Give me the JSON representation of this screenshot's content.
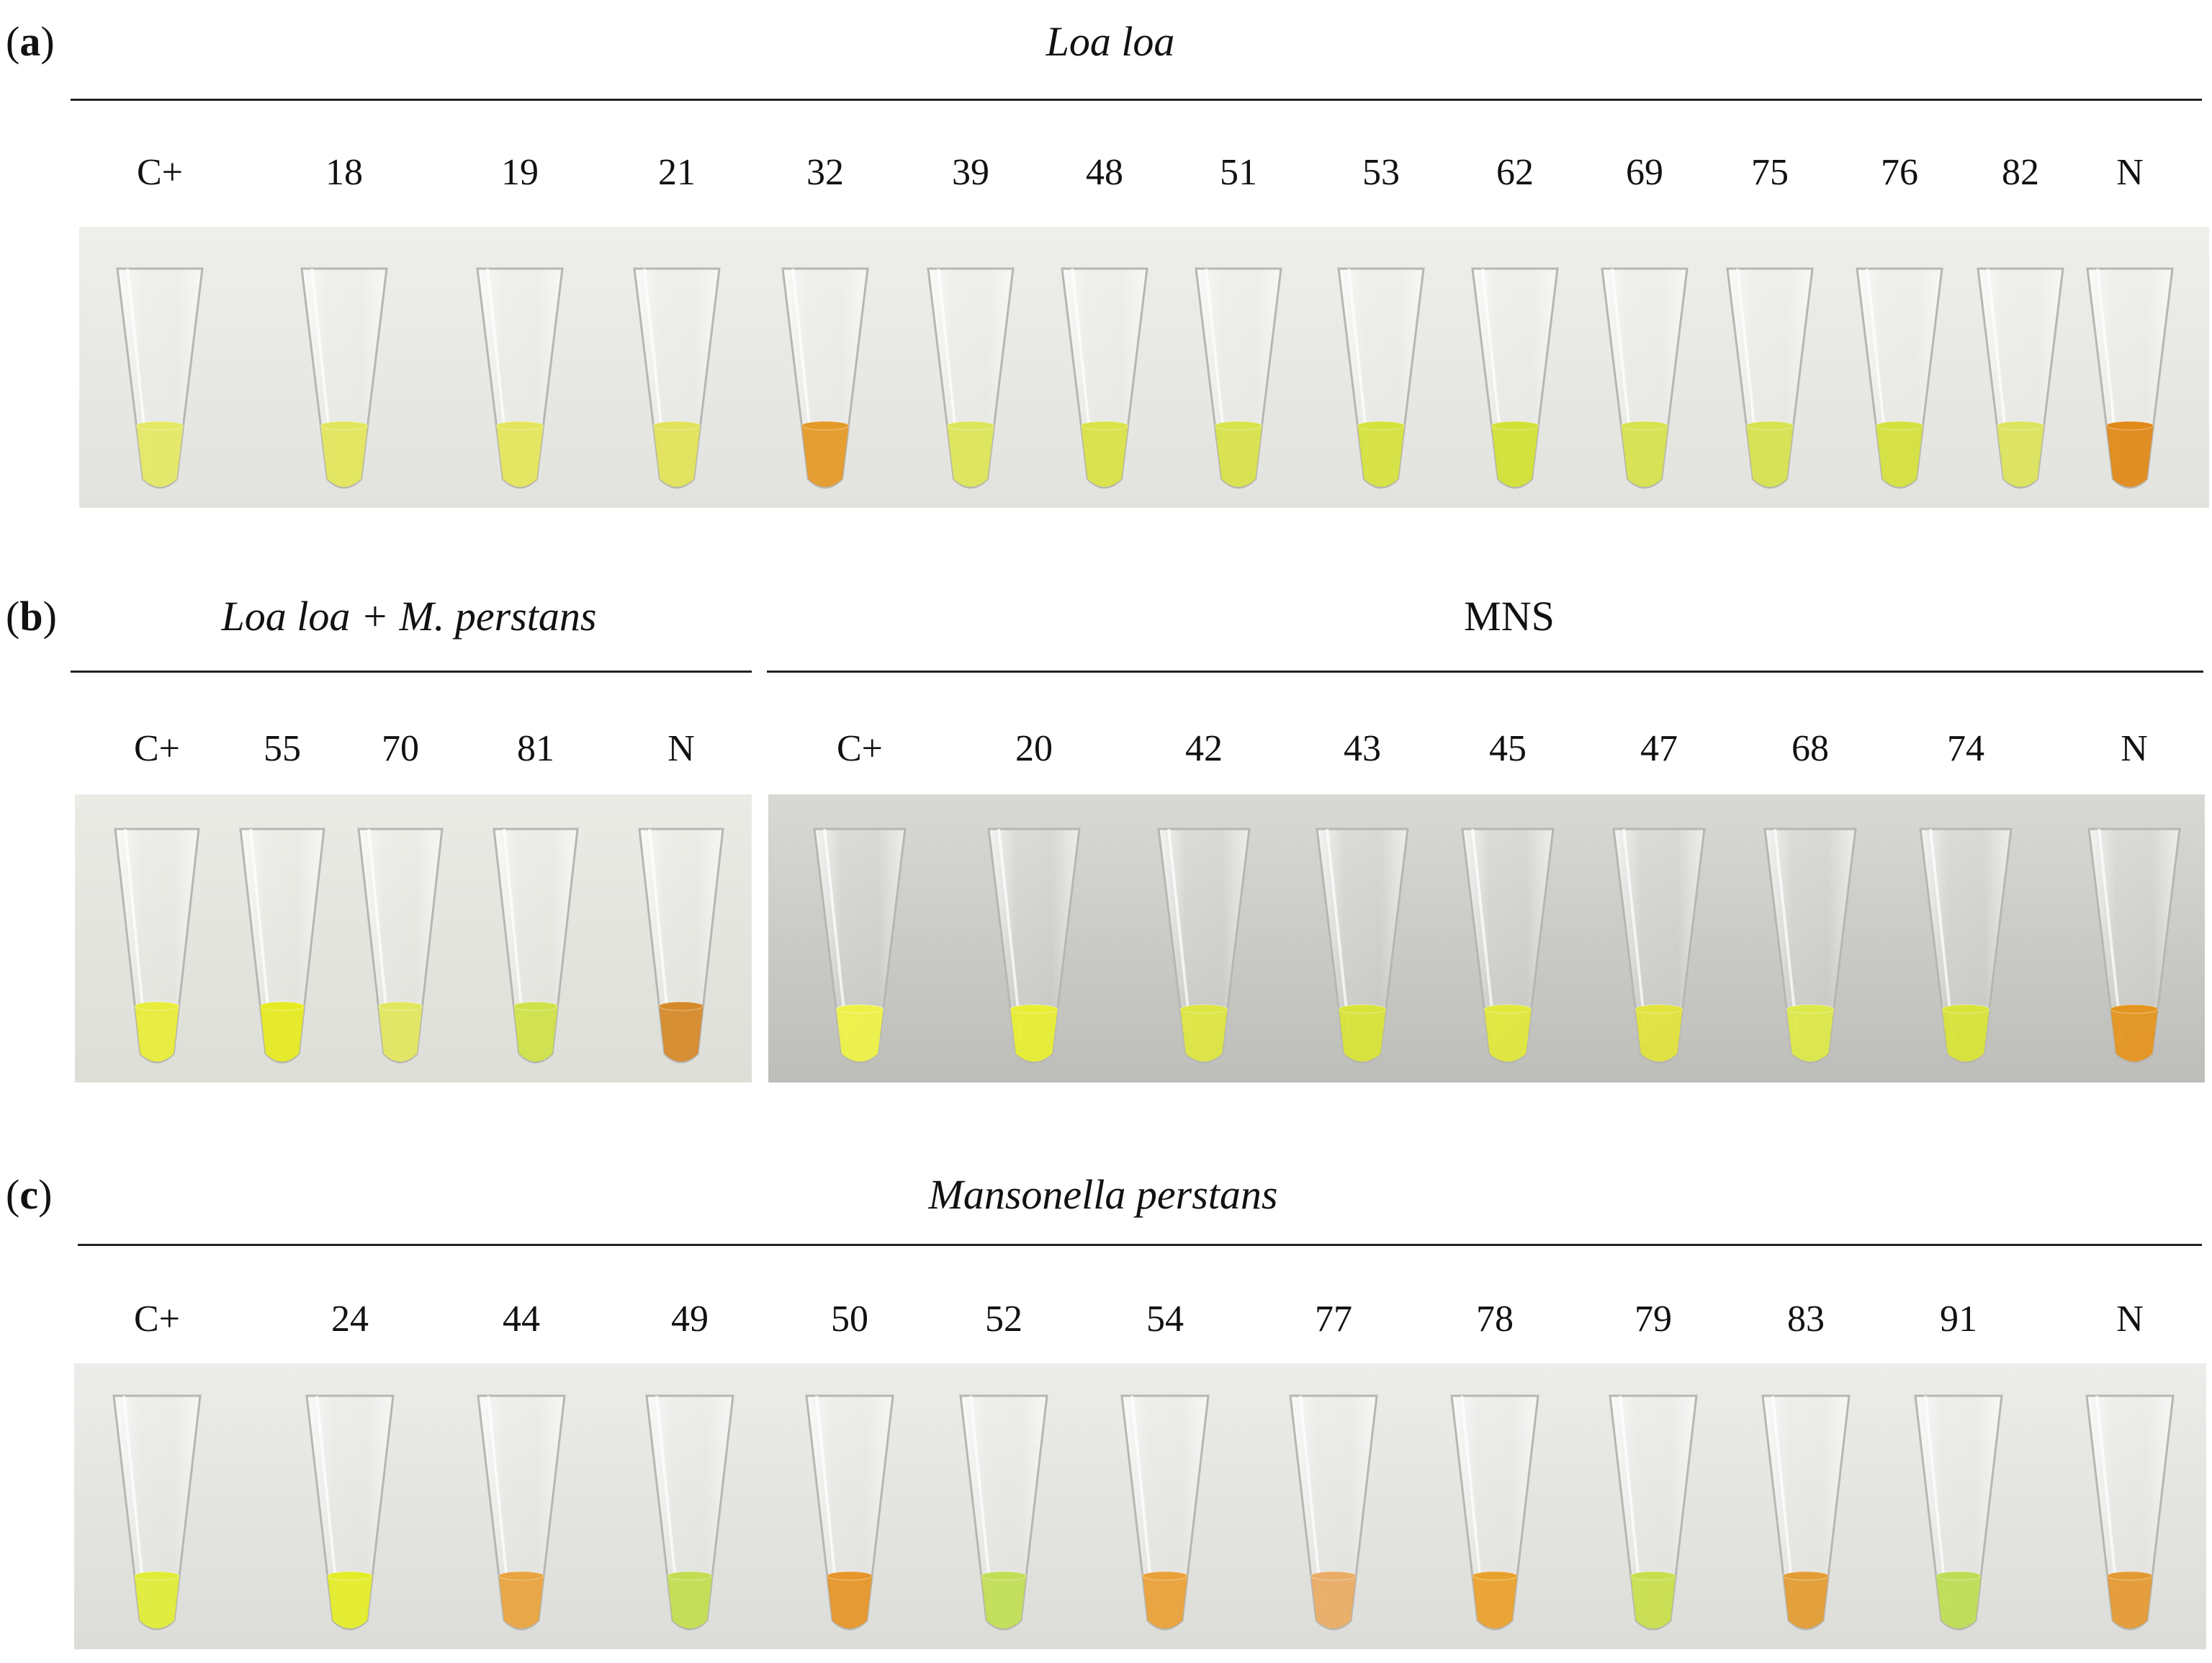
{
  "panels": {
    "a": {
      "letter": "a",
      "title": "Loa loa",
      "labels": [
        "C+",
        "18",
        "19",
        "21",
        "32",
        "39",
        "48",
        "51",
        "53",
        "62",
        "69",
        "75",
        "76",
        "82",
        "N"
      ],
      "tube_colors": [
        "#e4e865",
        "#e2e65c",
        "#e4e55c",
        "#e0e35a",
        "#e49a28",
        "#dce55a",
        "#d9e248",
        "#d8e24a",
        "#d5e23e",
        "#d2e136",
        "#d6e24e",
        "#d6e250",
        "#d4e03e",
        "#dce35c",
        "#e08a1a"
      ]
    },
    "b1": {
      "letter": "b",
      "title": "Loa loa + M. perstans",
      "labels": [
        "C+",
        "55",
        "70",
        "81",
        "N"
      ],
      "tube_colors": [
        "#e8ec3a",
        "#e6ea22",
        "#e0e660",
        "#cfe14a",
        "#d58a2a"
      ]
    },
    "b2": {
      "title": "MNS",
      "labels": [
        "C+",
        "20",
        "42",
        "43",
        "45",
        "47",
        "68",
        "74",
        "N"
      ],
      "tube_colors": [
        "#eef248",
        "#e8ee34",
        "#dde642",
        "#d8e43a",
        "#e0e83c",
        "#e2e33e",
        "#dde84a",
        "#d8e43a",
        "#e49520"
      ]
    },
    "c": {
      "letter": "c",
      "title": "Mansonella perstans",
      "labels": [
        "C+",
        "24",
        "44",
        "49",
        "50",
        "52",
        "54",
        "77",
        "78",
        "79",
        "83",
        "91",
        "N"
      ],
      "tube_colors": [
        "#e0ec3a",
        "#e4ec2a",
        "#e8a440",
        "#c2dd52",
        "#e6962a",
        "#c2dd56",
        "#eaa13a",
        "#e9ad66",
        "#e9a12e",
        "#c8de4e",
        "#e39d34",
        "#bfdc56",
        "#e49a34"
      ]
    }
  }
}
